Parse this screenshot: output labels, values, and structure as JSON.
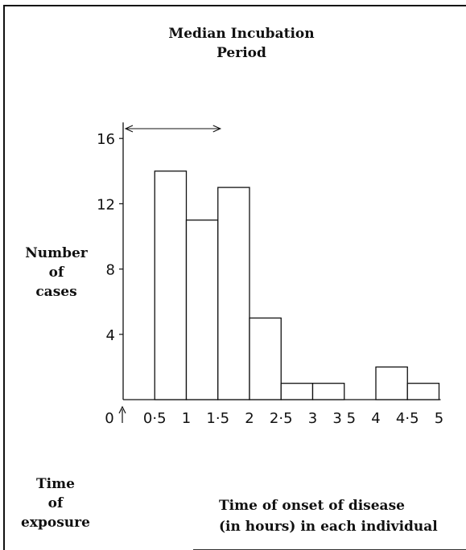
{
  "chart_data": {
    "type": "bar",
    "title_lines": [
      "Median Incubation",
      "Period"
    ],
    "ylabel_lines": [
      "Number",
      "of",
      "cases"
    ],
    "xlabel_lines": [
      "Time of onset of disease",
      "(in hours) in each individual"
    ],
    "exposure_lines": [
      "Time",
      "of",
      "exposure"
    ],
    "bins": [
      {
        "from": 0.5,
        "to": 1.0,
        "value": 14
      },
      {
        "from": 1.0,
        "to": 1.5,
        "value": 11
      },
      {
        "from": 1.5,
        "to": 2.0,
        "value": 13
      },
      {
        "from": 2.0,
        "to": 2.5,
        "value": 5
      },
      {
        "from": 2.5,
        "to": 3.0,
        "value": 1
      },
      {
        "from": 3.0,
        "to": 3.5,
        "value": 1
      },
      {
        "from": 3.5,
        "to": 4.0,
        "value": 0
      },
      {
        "from": 4.0,
        "to": 4.5,
        "value": 2
      },
      {
        "from": 4.5,
        "to": 5.0,
        "value": 1
      }
    ],
    "xlim": [
      0,
      5
    ],
    "ylim": [
      0,
      16
    ],
    "yticks": [
      {
        "value": 4,
        "label": "4"
      },
      {
        "value": 8,
        "label": "8"
      },
      {
        "value": 12,
        "label": "12"
      },
      {
        "value": 16,
        "label": "16"
      }
    ],
    "xticks": [
      {
        "value": 0,
        "label": "0"
      },
      {
        "value": 0.5,
        "label": "0·5"
      },
      {
        "value": 1,
        "label": "1"
      },
      {
        "value": 1.5,
        "label": "1·5"
      },
      {
        "value": 2,
        "label": "2"
      },
      {
        "value": 2.5,
        "label": "2·5"
      },
      {
        "value": 3,
        "label": "3"
      },
      {
        "value": 3.5,
        "label": "3 5"
      },
      {
        "value": 4,
        "label": "4"
      },
      {
        "value": 4.5,
        "label": "4·5"
      },
      {
        "value": 5,
        "label": "5"
      }
    ],
    "median_range": [
      0,
      1.5
    ]
  }
}
